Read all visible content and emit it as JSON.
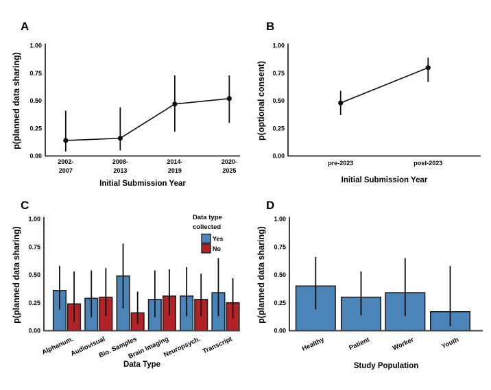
{
  "colors": {
    "background": "#ffffff",
    "axis": "#404040",
    "ink": "#0d0d0d",
    "bar_outline": "#202020",
    "yes_blue": "#4a84b8",
    "no_red": "#b22226"
  },
  "chart_data": [
    {
      "panel_label": "A",
      "type": "line",
      "title": "",
      "xlabel": "Initial Submission Year",
      "ylabel": "p(planned data sharing)",
      "ylim": [
        0,
        1
      ],
      "yticks": [
        "0.00",
        "0.25",
        "0.50",
        "0.75",
        "1.00"
      ],
      "grid": false,
      "categories": [
        [
          "2002-",
          "2007"
        ],
        [
          "2008-",
          "2013"
        ],
        [
          "2014-",
          "2019"
        ],
        [
          "2020-",
          "2025"
        ]
      ],
      "values": [
        0.14,
        0.16,
        0.47,
        0.52
      ],
      "err_low": [
        0.04,
        0.05,
        0.22,
        0.3
      ],
      "err_high": [
        0.41,
        0.44,
        0.73,
        0.73
      ]
    },
    {
      "panel_label": "B",
      "type": "line",
      "title": "",
      "xlabel": "Initial Submission Year",
      "ylabel": "p(optional consent)",
      "ylim": [
        0,
        1
      ],
      "yticks": [
        "0.00",
        "0.25",
        "0.50",
        "0.75",
        "1.00"
      ],
      "grid": false,
      "categories": [
        [
          "pre-2023"
        ],
        [
          "post-2023"
        ]
      ],
      "values": [
        0.48,
        0.8
      ],
      "err_low": [
        0.37,
        0.67
      ],
      "err_high": [
        0.59,
        0.89
      ]
    },
    {
      "panel_label": "C",
      "type": "grouped_bar",
      "title": "",
      "xlabel": "Data Type",
      "ylabel": "p(planned data sharing)",
      "ylim": [
        0,
        1
      ],
      "yticks": [
        "0.00",
        "0.25",
        "0.50",
        "0.75",
        "1.00"
      ],
      "grid": false,
      "categories": [
        "Alphanum.",
        "Audiovisual",
        "Bio. Samples",
        "Brain Imaging",
        "Neuropsych.",
        "Transcript"
      ],
      "legend": {
        "title": [
          "Data type",
          "collected"
        ],
        "position": "top-right-inside",
        "items": [
          {
            "label": "Yes",
            "color": "#4a84b8"
          },
          {
            "label": "No",
            "color": "#b22226"
          }
        ]
      },
      "series": [
        {
          "name": "Yes",
          "color": "#4a84b8",
          "values": [
            0.36,
            0.29,
            0.49,
            0.28,
            0.31,
            0.34
          ],
          "err_low": [
            0.19,
            0.12,
            0.2,
            0.12,
            0.13,
            0.13
          ],
          "err_high": [
            0.58,
            0.54,
            0.78,
            0.54,
            0.57,
            0.65
          ]
        },
        {
          "name": "No",
          "color": "#b22226",
          "values": [
            0.24,
            0.3,
            0.16,
            0.31,
            0.28,
            0.25
          ],
          "err_low": [
            0.08,
            0.13,
            0.06,
            0.14,
            0.13,
            0.11
          ],
          "err_high": [
            0.53,
            0.56,
            0.35,
            0.55,
            0.51,
            0.47
          ]
        }
      ]
    },
    {
      "panel_label": "D",
      "type": "bar",
      "title": "",
      "xlabel": "Study Population",
      "ylabel": "p(planned data sharing)",
      "ylim": [
        0,
        1
      ],
      "yticks": [
        "0.00",
        "0.25",
        "0.50",
        "0.75",
        "1.00"
      ],
      "grid": false,
      "bar_color": "#4a84b8",
      "categories": [
        "Healthy",
        "Patient",
        "Worker",
        "Youth"
      ],
      "values": [
        0.4,
        0.3,
        0.34,
        0.17
      ],
      "err_low": [
        0.19,
        0.14,
        0.13,
        0.04
      ],
      "err_high": [
        0.66,
        0.53,
        0.65,
        0.58
      ]
    }
  ]
}
